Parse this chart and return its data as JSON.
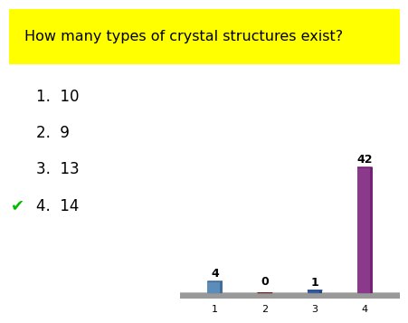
{
  "title": "How many types of crystal structures exist?",
  "title_bg": "#ffff00",
  "options": [
    "1.  10",
    "2.  9",
    "3.  13",
    "4.  14"
  ],
  "correct_option": 3,
  "checkmark": "✔",
  "bar_values": [
    4,
    0,
    1,
    42
  ],
  "bar_colors": [
    "#5b8db8",
    "#a84040",
    "#3a5fa0",
    "#8b3a8b"
  ],
  "bar_colors_dark": [
    "#3a6090",
    "#7a2020",
    "#1a3f80",
    "#6b1a6b"
  ],
  "bar_labels": [
    "4",
    "0",
    "1",
    "42"
  ],
  "x_ticks": [
    1,
    2,
    3,
    4
  ],
  "background_color": "#ffffff",
  "floor_color": "#999999",
  "floor_color2": "#bbbbbb"
}
